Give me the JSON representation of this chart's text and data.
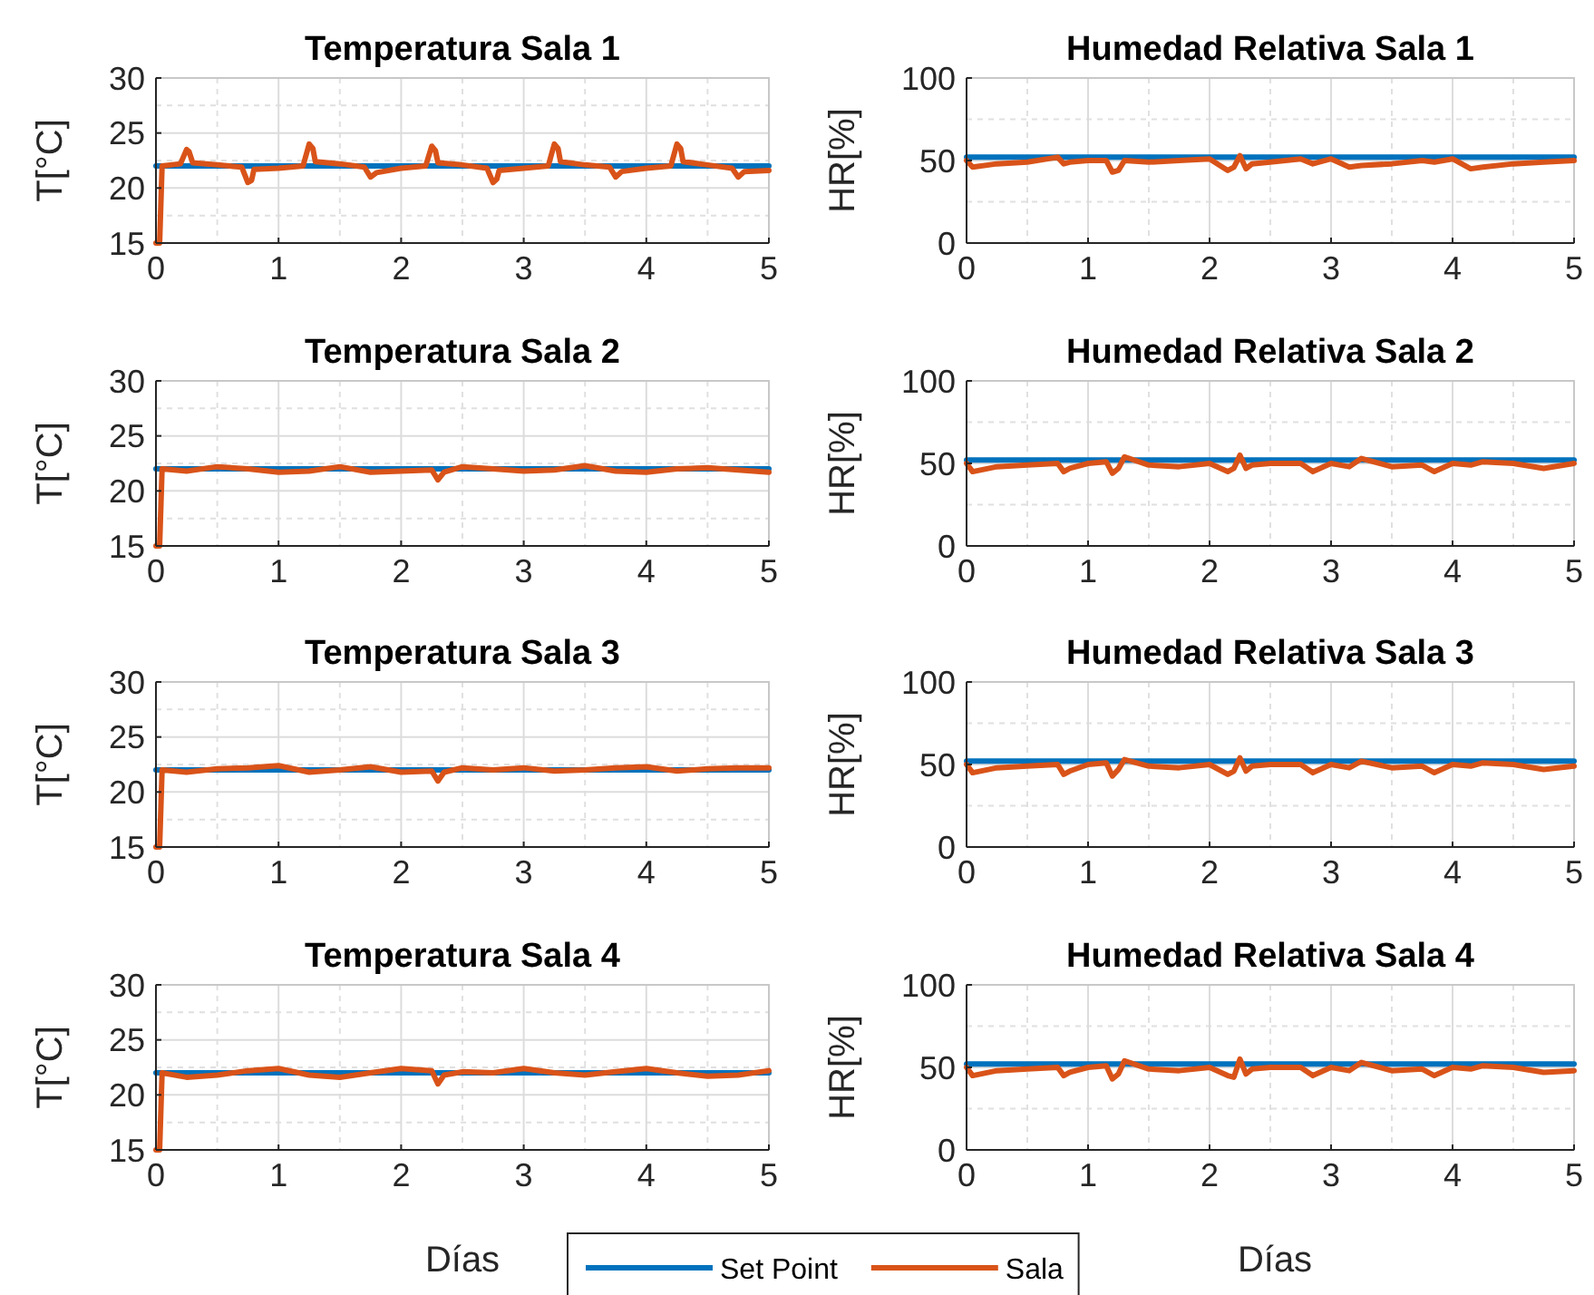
{
  "chart_data": [
    {
      "type": "line",
      "title": "Temperatura Sala 1",
      "ylabel": "T[°C]",
      "xlim": [
        0,
        5
      ],
      "xticks": [
        0,
        1,
        2,
        3,
        4,
        5
      ],
      "ylim": [
        15,
        30
      ],
      "yticks": [
        15,
        20,
        25,
        30
      ],
      "grid": true,
      "series": [
        {
          "color": "#0072bd",
          "x": [
            0,
            5
          ],
          "values": [
            22,
            22
          ]
        },
        {
          "color": "#d95319",
          "x": [
            0,
            0.03,
            0.05,
            0.2,
            0.25,
            0.27,
            0.3,
            0.5,
            0.7,
            0.75,
            0.78,
            0.8,
            1.0,
            1.2,
            1.25,
            1.28,
            1.3,
            1.5,
            1.7,
            1.75,
            1.8,
            2.0,
            2.2,
            2.25,
            2.28,
            2.3,
            2.5,
            2.7,
            2.75,
            2.78,
            2.8,
            3.0,
            3.2,
            3.25,
            3.28,
            3.3,
            3.5,
            3.7,
            3.75,
            3.8,
            4.0,
            4.2,
            4.25,
            4.28,
            4.3,
            4.5,
            4.7,
            4.75,
            4.8,
            5.0
          ],
          "values": [
            15,
            15,
            22,
            22.2,
            23.5,
            23.3,
            22.3,
            22.1,
            21.9,
            20.5,
            20.7,
            21.7,
            21.8,
            22,
            24,
            23.6,
            22.4,
            22.2,
            21.9,
            21,
            21.4,
            21.8,
            22,
            23.8,
            23.4,
            22.3,
            22.1,
            21.8,
            20.5,
            20.8,
            21.6,
            21.8,
            22,
            24,
            23.6,
            22.4,
            22.1,
            21.9,
            21,
            21.5,
            21.8,
            22,
            24,
            23.6,
            22.4,
            22.1,
            21.8,
            21,
            21.5,
            21.6
          ]
        }
      ]
    },
    {
      "type": "line",
      "title": "Humedad Relativa Sala 1",
      "ylabel": "HR[%]",
      "xlim": [
        0,
        5
      ],
      "xticks": [
        0,
        1,
        2,
        3,
        4,
        5
      ],
      "ylim": [
        0,
        100
      ],
      "yticks": [
        0,
        50,
        100
      ],
      "grid": true,
      "series": [
        {
          "color": "#0072bd",
          "x": [
            0,
            5
          ],
          "values": [
            52,
            52
          ]
        },
        {
          "color": "#d95319",
          "x": [
            0,
            0.05,
            0.25,
            0.5,
            0.75,
            0.8,
            0.85,
            1.0,
            1.15,
            1.2,
            1.25,
            1.3,
            1.5,
            1.75,
            2.0,
            2.15,
            2.2,
            2.25,
            2.3,
            2.35,
            2.5,
            2.75,
            2.85,
            3.0,
            3.15,
            3.25,
            3.5,
            3.75,
            3.85,
            4.0,
            4.15,
            4.25,
            4.5,
            4.75,
            5.0
          ],
          "values": [
            50,
            46,
            48,
            49,
            52,
            48,
            49,
            50,
            50,
            43,
            44,
            50,
            49,
            50,
            51,
            44,
            46,
            53,
            45,
            48,
            49,
            51,
            48,
            51,
            46,
            47,
            48,
            50,
            49,
            51,
            45,
            46,
            48,
            49,
            50
          ]
        }
      ]
    },
    {
      "type": "line",
      "title": "Temperatura Sala 2",
      "ylabel": "T[°C]",
      "xlim": [
        0,
        5
      ],
      "xticks": [
        0,
        1,
        2,
        3,
        4,
        5
      ],
      "ylim": [
        15,
        30
      ],
      "yticks": [
        15,
        20,
        25,
        30
      ],
      "grid": true,
      "series": [
        {
          "color": "#0072bd",
          "x": [
            0,
            5
          ],
          "values": [
            22,
            22
          ]
        },
        {
          "color": "#d95319",
          "x": [
            0,
            0.03,
            0.05,
            0.25,
            0.5,
            0.75,
            1.0,
            1.25,
            1.5,
            1.75,
            2.0,
            2.25,
            2.3,
            2.35,
            2.5,
            2.75,
            3.0,
            3.25,
            3.5,
            3.75,
            4.0,
            4.25,
            4.5,
            4.75,
            5.0
          ],
          "values": [
            15,
            15,
            22,
            21.8,
            22.2,
            22.0,
            21.7,
            21.8,
            22.2,
            21.7,
            21.8,
            21.9,
            21,
            21.7,
            22.2,
            22.0,
            21.8,
            21.9,
            22.3,
            21.8,
            21.7,
            22.0,
            22.1,
            21.9,
            21.7
          ]
        }
      ]
    },
    {
      "type": "line",
      "title": "Humedad Relativa Sala 2",
      "ylabel": "HR[%]",
      "xlim": [
        0,
        5
      ],
      "xticks": [
        0,
        1,
        2,
        3,
        4,
        5
      ],
      "ylim": [
        0,
        100
      ],
      "yticks": [
        0,
        50,
        100
      ],
      "grid": true,
      "series": [
        {
          "color": "#0072bd",
          "x": [
            0,
            5
          ],
          "values": [
            52,
            52
          ]
        },
        {
          "color": "#d95319",
          "x": [
            0,
            0.05,
            0.25,
            0.5,
            0.75,
            0.8,
            0.85,
            1.0,
            1.15,
            1.2,
            1.25,
            1.3,
            1.5,
            1.75,
            2.0,
            2.15,
            2.2,
            2.25,
            2.3,
            2.35,
            2.5,
            2.75,
            2.85,
            3.0,
            3.15,
            3.25,
            3.5,
            3.75,
            3.85,
            4.0,
            4.15,
            4.25,
            4.5,
            4.75,
            5.0
          ],
          "values": [
            50,
            45,
            48,
            49,
            50,
            45,
            47,
            50,
            51,
            44,
            47,
            54,
            49,
            48,
            50,
            45,
            47,
            55,
            47,
            49,
            50,
            50,
            45,
            50,
            48,
            53,
            48,
            49,
            45,
            50,
            49,
            51,
            50,
            47,
            50
          ]
        }
      ]
    },
    {
      "type": "line",
      "title": "Temperatura Sala 3",
      "ylabel": "T[°C]",
      "xlim": [
        0,
        5
      ],
      "xticks": [
        0,
        1,
        2,
        3,
        4,
        5
      ],
      "ylim": [
        15,
        30
      ],
      "yticks": [
        15,
        20,
        25,
        30
      ],
      "grid": true,
      "series": [
        {
          "color": "#0072bd",
          "x": [
            0,
            5
          ],
          "values": [
            22,
            22
          ]
        },
        {
          "color": "#d95319",
          "x": [
            0,
            0.03,
            0.05,
            0.25,
            0.5,
            0.75,
            1.0,
            1.25,
            1.5,
            1.75,
            2.0,
            2.25,
            2.3,
            2.35,
            2.5,
            2.75,
            3.0,
            3.25,
            3.5,
            3.75,
            4.0,
            4.25,
            4.5,
            4.75,
            5.0
          ],
          "values": [
            15,
            15,
            22,
            21.8,
            22.1,
            22.2,
            22.4,
            21.8,
            22.0,
            22.3,
            21.8,
            21.9,
            21.0,
            21.8,
            22.2,
            22.0,
            22.2,
            21.9,
            22.0,
            22.2,
            22.3,
            21.9,
            22.1,
            22.2,
            22.2
          ]
        }
      ]
    },
    {
      "type": "line",
      "title": "Humedad Relativa Sala 3",
      "ylabel": "HR[%]",
      "xlim": [
        0,
        5
      ],
      "xticks": [
        0,
        1,
        2,
        3,
        4,
        5
      ],
      "ylim": [
        0,
        100
      ],
      "yticks": [
        0,
        50,
        100
      ],
      "grid": true,
      "series": [
        {
          "color": "#0072bd",
          "x": [
            0,
            5
          ],
          "values": [
            52,
            52
          ]
        },
        {
          "color": "#d95319",
          "x": [
            0,
            0.05,
            0.25,
            0.5,
            0.75,
            0.8,
            0.85,
            1.0,
            1.15,
            1.2,
            1.25,
            1.3,
            1.5,
            1.75,
            2.0,
            2.15,
            2.2,
            2.25,
            2.3,
            2.35,
            2.5,
            2.75,
            2.85,
            3.0,
            3.15,
            3.25,
            3.5,
            3.75,
            3.85,
            4.0,
            4.15,
            4.25,
            4.5,
            4.75,
            5.0
          ],
          "values": [
            50,
            45,
            48,
            49,
            50,
            44,
            46,
            50,
            51,
            43,
            47,
            53,
            49,
            48,
            50,
            44,
            46,
            54,
            46,
            49,
            50,
            50,
            45,
            50,
            48,
            52,
            48,
            49,
            45,
            50,
            49,
            51,
            50,
            47,
            49
          ]
        }
      ]
    },
    {
      "type": "line",
      "title": "Temperatura Sala 4",
      "ylabel": "T[°C]",
      "xlabel": "Días",
      "xlim": [
        0,
        5
      ],
      "xticks": [
        0,
        1,
        2,
        3,
        4,
        5
      ],
      "ylim": [
        15,
        30
      ],
      "yticks": [
        15,
        20,
        25,
        30
      ],
      "grid": true,
      "legend": "bottom",
      "series": [
        {
          "name": "Set Point",
          "color": "#0072bd",
          "x": [
            0,
            5
          ],
          "values": [
            22,
            22
          ]
        },
        {
          "name": "Sala",
          "color": "#d95319",
          "x": [
            0,
            0.03,
            0.05,
            0.25,
            0.5,
            0.75,
            1.0,
            1.25,
            1.5,
            1.75,
            2.0,
            2.25,
            2.3,
            2.35,
            2.5,
            2.75,
            3.0,
            3.25,
            3.5,
            3.75,
            4.0,
            4.25,
            4.5,
            4.75,
            5.0
          ],
          "values": [
            15,
            15,
            22,
            21.6,
            21.8,
            22.2,
            22.4,
            21.8,
            21.6,
            22.0,
            22.4,
            22.2,
            21.0,
            21.8,
            22.1,
            22.0,
            22.4,
            22.0,
            21.8,
            22.1,
            22.4,
            22.0,
            21.7,
            21.8,
            22.2
          ]
        }
      ]
    },
    {
      "type": "line",
      "title": "Humedad Relativa Sala 4",
      "ylabel": "HR[%]",
      "xlabel": "Días",
      "xlim": [
        0,
        5
      ],
      "xticks": [
        0,
        1,
        2,
        3,
        4,
        5
      ],
      "ylim": [
        0,
        100
      ],
      "yticks": [
        0,
        50,
        100
      ],
      "grid": true,
      "series": [
        {
          "color": "#0072bd",
          "x": [
            0,
            5
          ],
          "values": [
            52,
            52
          ]
        },
        {
          "color": "#d95319",
          "x": [
            0,
            0.05,
            0.25,
            0.5,
            0.75,
            0.8,
            0.85,
            1.0,
            1.15,
            1.2,
            1.25,
            1.3,
            1.5,
            1.75,
            2.0,
            2.15,
            2.2,
            2.25,
            2.3,
            2.35,
            2.5,
            2.75,
            2.85,
            3.0,
            3.15,
            3.25,
            3.5,
            3.75,
            3.85,
            4.0,
            4.15,
            4.25,
            4.5,
            4.75,
            5.0
          ],
          "values": [
            50,
            45,
            48,
            49,
            50,
            45,
            47,
            50,
            51,
            43,
            46,
            54,
            49,
            48,
            50,
            45,
            44,
            55,
            46,
            49,
            50,
            50,
            45,
            50,
            48,
            53,
            48,
            49,
            45,
            50,
            49,
            51,
            50,
            47,
            48
          ]
        }
      ]
    }
  ]
}
